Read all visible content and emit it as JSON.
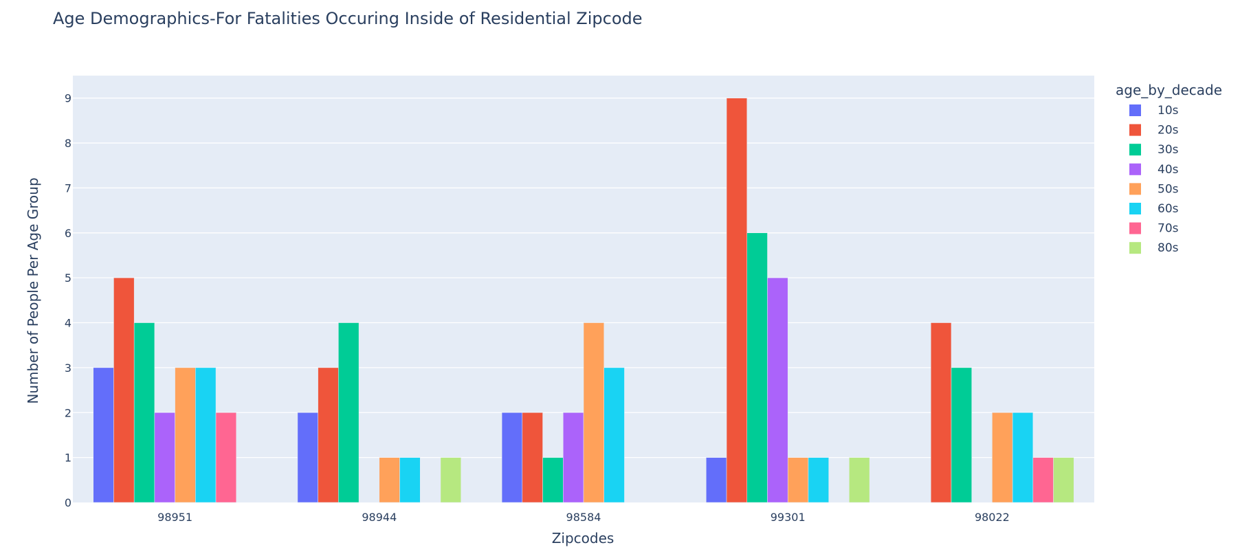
{
  "chart_data": {
    "type": "bar",
    "title": "Age Demographics-For Fatalities Occuring Inside of Residential Zipcode",
    "xlabel": "Zipcodes",
    "ylabel": "Number of People Per Age Group",
    "categories": [
      "98951",
      "98944",
      "98584",
      "99301",
      "98022"
    ],
    "ylim": [
      0,
      9.5
    ],
    "yticks": [
      0,
      1,
      2,
      3,
      4,
      5,
      6,
      7,
      8,
      9
    ],
    "grid": true,
    "legend_title": "age_by_decade",
    "legend_position": "right",
    "series": [
      {
        "name": "10s",
        "color": "#636efa",
        "values": [
          3,
          2,
          2,
          1,
          0
        ]
      },
      {
        "name": "20s",
        "color": "#ef553b",
        "values": [
          5,
          3,
          2,
          9,
          4
        ]
      },
      {
        "name": "30s",
        "color": "#00cc96",
        "values": [
          4,
          4,
          1,
          6,
          3
        ]
      },
      {
        "name": "40s",
        "color": "#ab63fa",
        "values": [
          2,
          0,
          2,
          5,
          0
        ]
      },
      {
        "name": "50s",
        "color": "#ffa15a",
        "values": [
          3,
          1,
          4,
          1,
          2
        ]
      },
      {
        "name": "60s",
        "color": "#19d3f3",
        "values": [
          3,
          1,
          3,
          1,
          2
        ]
      },
      {
        "name": "70s",
        "color": "#ff6692",
        "values": [
          2,
          0,
          0,
          0,
          1
        ]
      },
      {
        "name": "80s",
        "color": "#b6e880",
        "values": [
          0,
          1,
          0,
          1,
          1
        ]
      }
    ],
    "plot_bg": "#e5ecf6"
  }
}
